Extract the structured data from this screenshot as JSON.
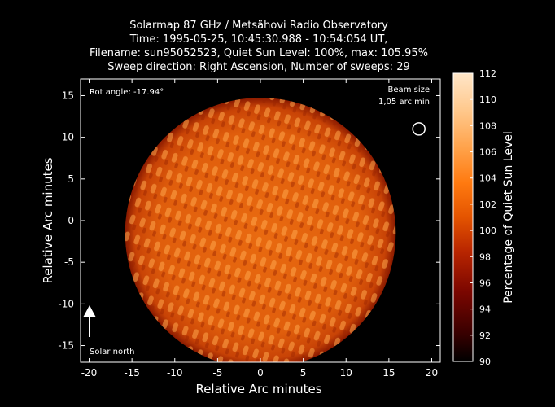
{
  "chart_data": {
    "type": "heatmap",
    "title_lines": [
      "Solarmap 87 GHz / Metsähovi Radio Observatory",
      "Time: 1995-05-25, 10:45:30.988 - 10:54:054 UT,",
      "Filename: sun95052523, Quiet Sun Level: 100%, max: 105.95%",
      "Sweep direction: Right Ascension, Number of sweeps: 29"
    ],
    "xlabel": "Relative Arc minutes",
    "ylabel": "Relative Arc minutes",
    "xlim": [
      -21,
      21
    ],
    "ylim": [
      -17,
      17
    ],
    "xticks": [
      -20,
      -15,
      -10,
      -5,
      0,
      5,
      10,
      15,
      20
    ],
    "yticks": [
      -15,
      -10,
      -5,
      0,
      5,
      10,
      15
    ],
    "colorbar": {
      "label": "Percentage of Quiet Sun Level",
      "range": [
        90,
        112
      ],
      "ticks": [
        90,
        92,
        94,
        96,
        98,
        100,
        102,
        104,
        106,
        108,
        110,
        112
      ],
      "colors": [
        "#000000",
        "#3a0000",
        "#7a0600",
        "#b82500",
        "#e45400",
        "#ff7a10",
        "#ffa24a",
        "#ffc88c",
        "#ffe6c8"
      ]
    },
    "disk": {
      "center_x": 0,
      "center_y": -1.5,
      "radius": 15.8,
      "typical_level": 100.5,
      "max_level": 105.95
    },
    "rot_angle_text": "Rot angle: -17.94°",
    "beam_label_lines": [
      "Beam size",
      "1,05 arc min"
    ],
    "beam": {
      "x": 18.5,
      "y": 11,
      "diameter_arcmin": 1.05
    },
    "north_label": "Solar north",
    "grid": false
  }
}
